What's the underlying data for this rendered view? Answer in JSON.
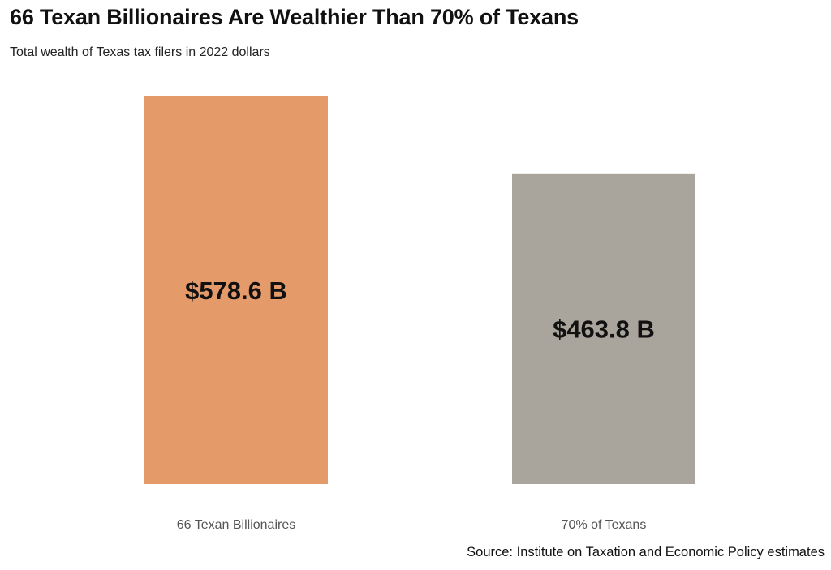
{
  "title": "66 Texan Billionaires Are Wealthier Than 70% of Texans",
  "subtitle": "Total wealth of Texas tax filers in 2022 dollars",
  "source": "Source: Institute on Taxation and Economic Policy estimates",
  "colors": {
    "billionaires": "#E59A6A",
    "texans": "#A9A49C",
    "value_label": "#111111",
    "tick_label": "#555555"
  },
  "chart_data": {
    "type": "bar",
    "categories": [
      "66 Texan Billionaires",
      "70% of Texans"
    ],
    "values": [
      578.6,
      463.8
    ],
    "value_labels": [
      "$578.6 B",
      "$463.8 B"
    ],
    "title": "66 Texan Billionaires Are Wealthier Than 70% of Texans",
    "subtitle": "Total wealth of Texas tax filers in 2022 dollars",
    "xlabel": "",
    "ylabel": "",
    "ylim": [
      0,
      578.6
    ],
    "grid": false,
    "legend": "none"
  }
}
